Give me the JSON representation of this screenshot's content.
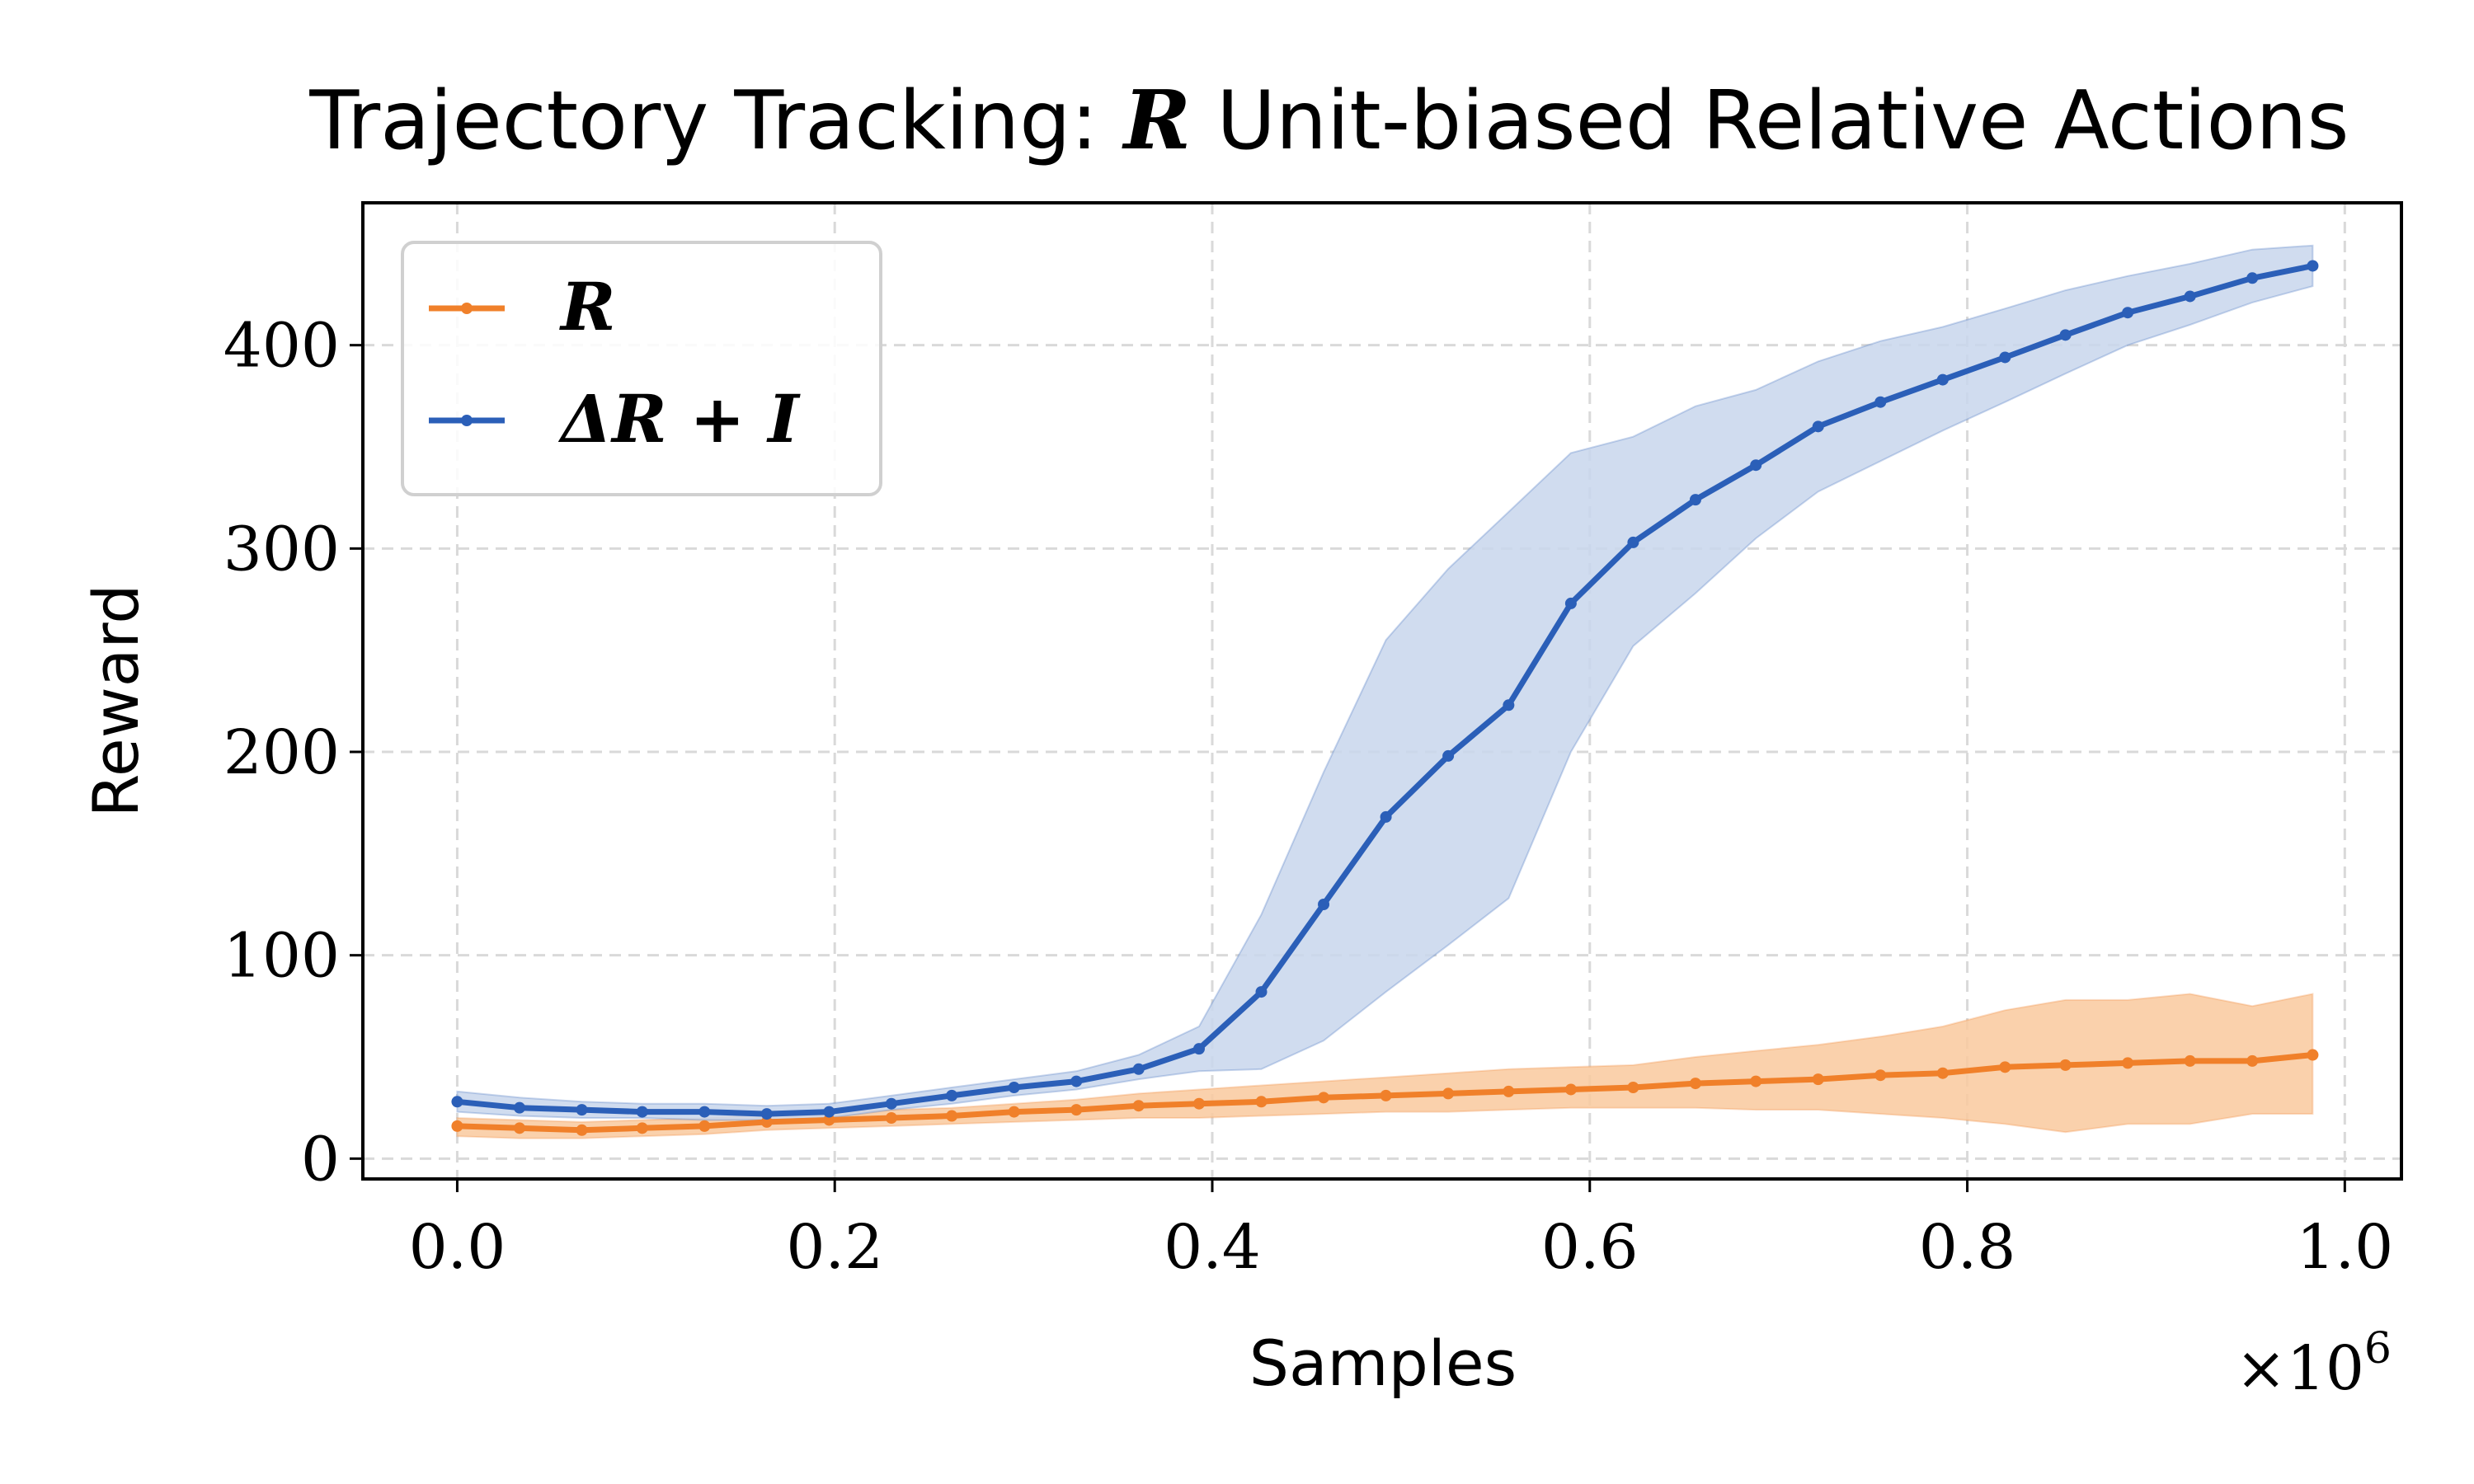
{
  "chart_data": {
    "type": "line",
    "title": {
      "prefix": "Trajectory Tracking: ",
      "symbol": "R",
      "suffix": " Unit-biased Relative Actions"
    },
    "xlabel": "Samples",
    "ylabel": "Reward",
    "x_multiplier_label": "×10",
    "x_multiplier_exponent": "6",
    "xlim": [
      -0.05,
      1.03
    ],
    "ylim": [
      -10,
      470
    ],
    "xticks": [
      0.0,
      0.2,
      0.4,
      0.6,
      0.8,
      1.0
    ],
    "xtick_labels": [
      "0.0",
      "0.2",
      "0.4",
      "0.6",
      "0.8",
      "1.0"
    ],
    "yticks": [
      0,
      100,
      200,
      300,
      400
    ],
    "ytick_labels": [
      "0",
      "100",
      "200",
      "300",
      "400"
    ],
    "grid": true,
    "legend_position": "top-left",
    "x": [
      0.0,
      0.033,
      0.066,
      0.098,
      0.131,
      0.164,
      0.197,
      0.23,
      0.262,
      0.295,
      0.328,
      0.361,
      0.393,
      0.426,
      0.459,
      0.492,
      0.525,
      0.557,
      0.59,
      0.623,
      0.656,
      0.688,
      0.721,
      0.754,
      0.787,
      0.82,
      0.852,
      0.885,
      0.918,
      0.951,
      0.983
    ],
    "series": [
      {
        "name": "R",
        "legend_label": "R",
        "color": "#f0802a",
        "band_color": "#f9c99d",
        "values": [
          16,
          15,
          14,
          15,
          16,
          18,
          19,
          20,
          21,
          23,
          24,
          26,
          27,
          28,
          30,
          31,
          32,
          33,
          34,
          35,
          37,
          38,
          39,
          41,
          42,
          45,
          46,
          47,
          48,
          48,
          51
        ],
        "lower": [
          11,
          10,
          10,
          11,
          12,
          14,
          15,
          16,
          17,
          18,
          19,
          20,
          20,
          21,
          22,
          23,
          23,
          24,
          25,
          25,
          25,
          24,
          24,
          22,
          20,
          17,
          13,
          17,
          17,
          22,
          22
        ],
        "upper": [
          20,
          19,
          18,
          19,
          20,
          22,
          23,
          24,
          25,
          27,
          29,
          32,
          34,
          36,
          38,
          40,
          42,
          44,
          45,
          46,
          50,
          53,
          56,
          60,
          65,
          73,
          78,
          78,
          81,
          75,
          81
        ]
      },
      {
        "name": "ΔR+I",
        "legend_label": "ΔR + I",
        "color": "#2b5fb8",
        "band_color": "#c8d6ec",
        "values": [
          28,
          25,
          24,
          23,
          23,
          22,
          23,
          27,
          31,
          35,
          38,
          44,
          54,
          82,
          125,
          168,
          198,
          223,
          273,
          303,
          324,
          341,
          360,
          372,
          383,
          394,
          405,
          416,
          424,
          433,
          439
        ],
        "lower": [
          23,
          21,
          20,
          20,
          19,
          19,
          20,
          24,
          27,
          31,
          34,
          39,
          43,
          44,
          58,
          82,
          105,
          128,
          200,
          252,
          278,
          305,
          328,
          343,
          358,
          372,
          386,
          400,
          410,
          421,
          429
        ],
        "upper": [
          33,
          30,
          28,
          27,
          27,
          26,
          27,
          31,
          35,
          39,
          43,
          51,
          65,
          120,
          190,
          255,
          290,
          318,
          347,
          355,
          370,
          378,
          392,
          402,
          409,
          418,
          427,
          434,
          440,
          447,
          449
        ]
      }
    ]
  }
}
